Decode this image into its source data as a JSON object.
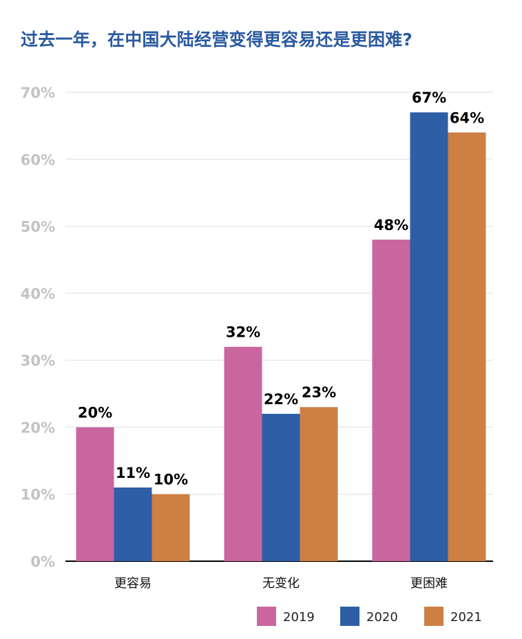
{
  "chart_data": {
    "type": "bar",
    "title": "过去一年，在中国大陆经营变得更容易还是更困难?",
    "xlabel": "",
    "ylabel": "",
    "categories": [
      "更容易",
      "无变化",
      "更困难"
    ],
    "series": [
      {
        "name": "2019",
        "color": "#c9669f",
        "values": [
          20,
          32,
          48
        ],
        "labels": [
          "20%",
          "32%",
          "48%"
        ]
      },
      {
        "name": "2020",
        "color": "#2e5ea6",
        "values": [
          11,
          22,
          67
        ],
        "labels": [
          "11%",
          "22%",
          "67%"
        ]
      },
      {
        "name": "2021",
        "color": "#cd7f44",
        "values": [
          10,
          23,
          64
        ],
        "labels": [
          "10%",
          "23%",
          "64%"
        ]
      }
    ],
    "ylim": [
      0,
      70
    ],
    "yticks": [
      0,
      10,
      20,
      30,
      40,
      50,
      60,
      70
    ],
    "ytick_labels": [
      "0%",
      "10%",
      "20%",
      "30%",
      "40%",
      "50%",
      "60%",
      "70%"
    ],
    "grid": true,
    "legend_position": "bottom-right"
  }
}
